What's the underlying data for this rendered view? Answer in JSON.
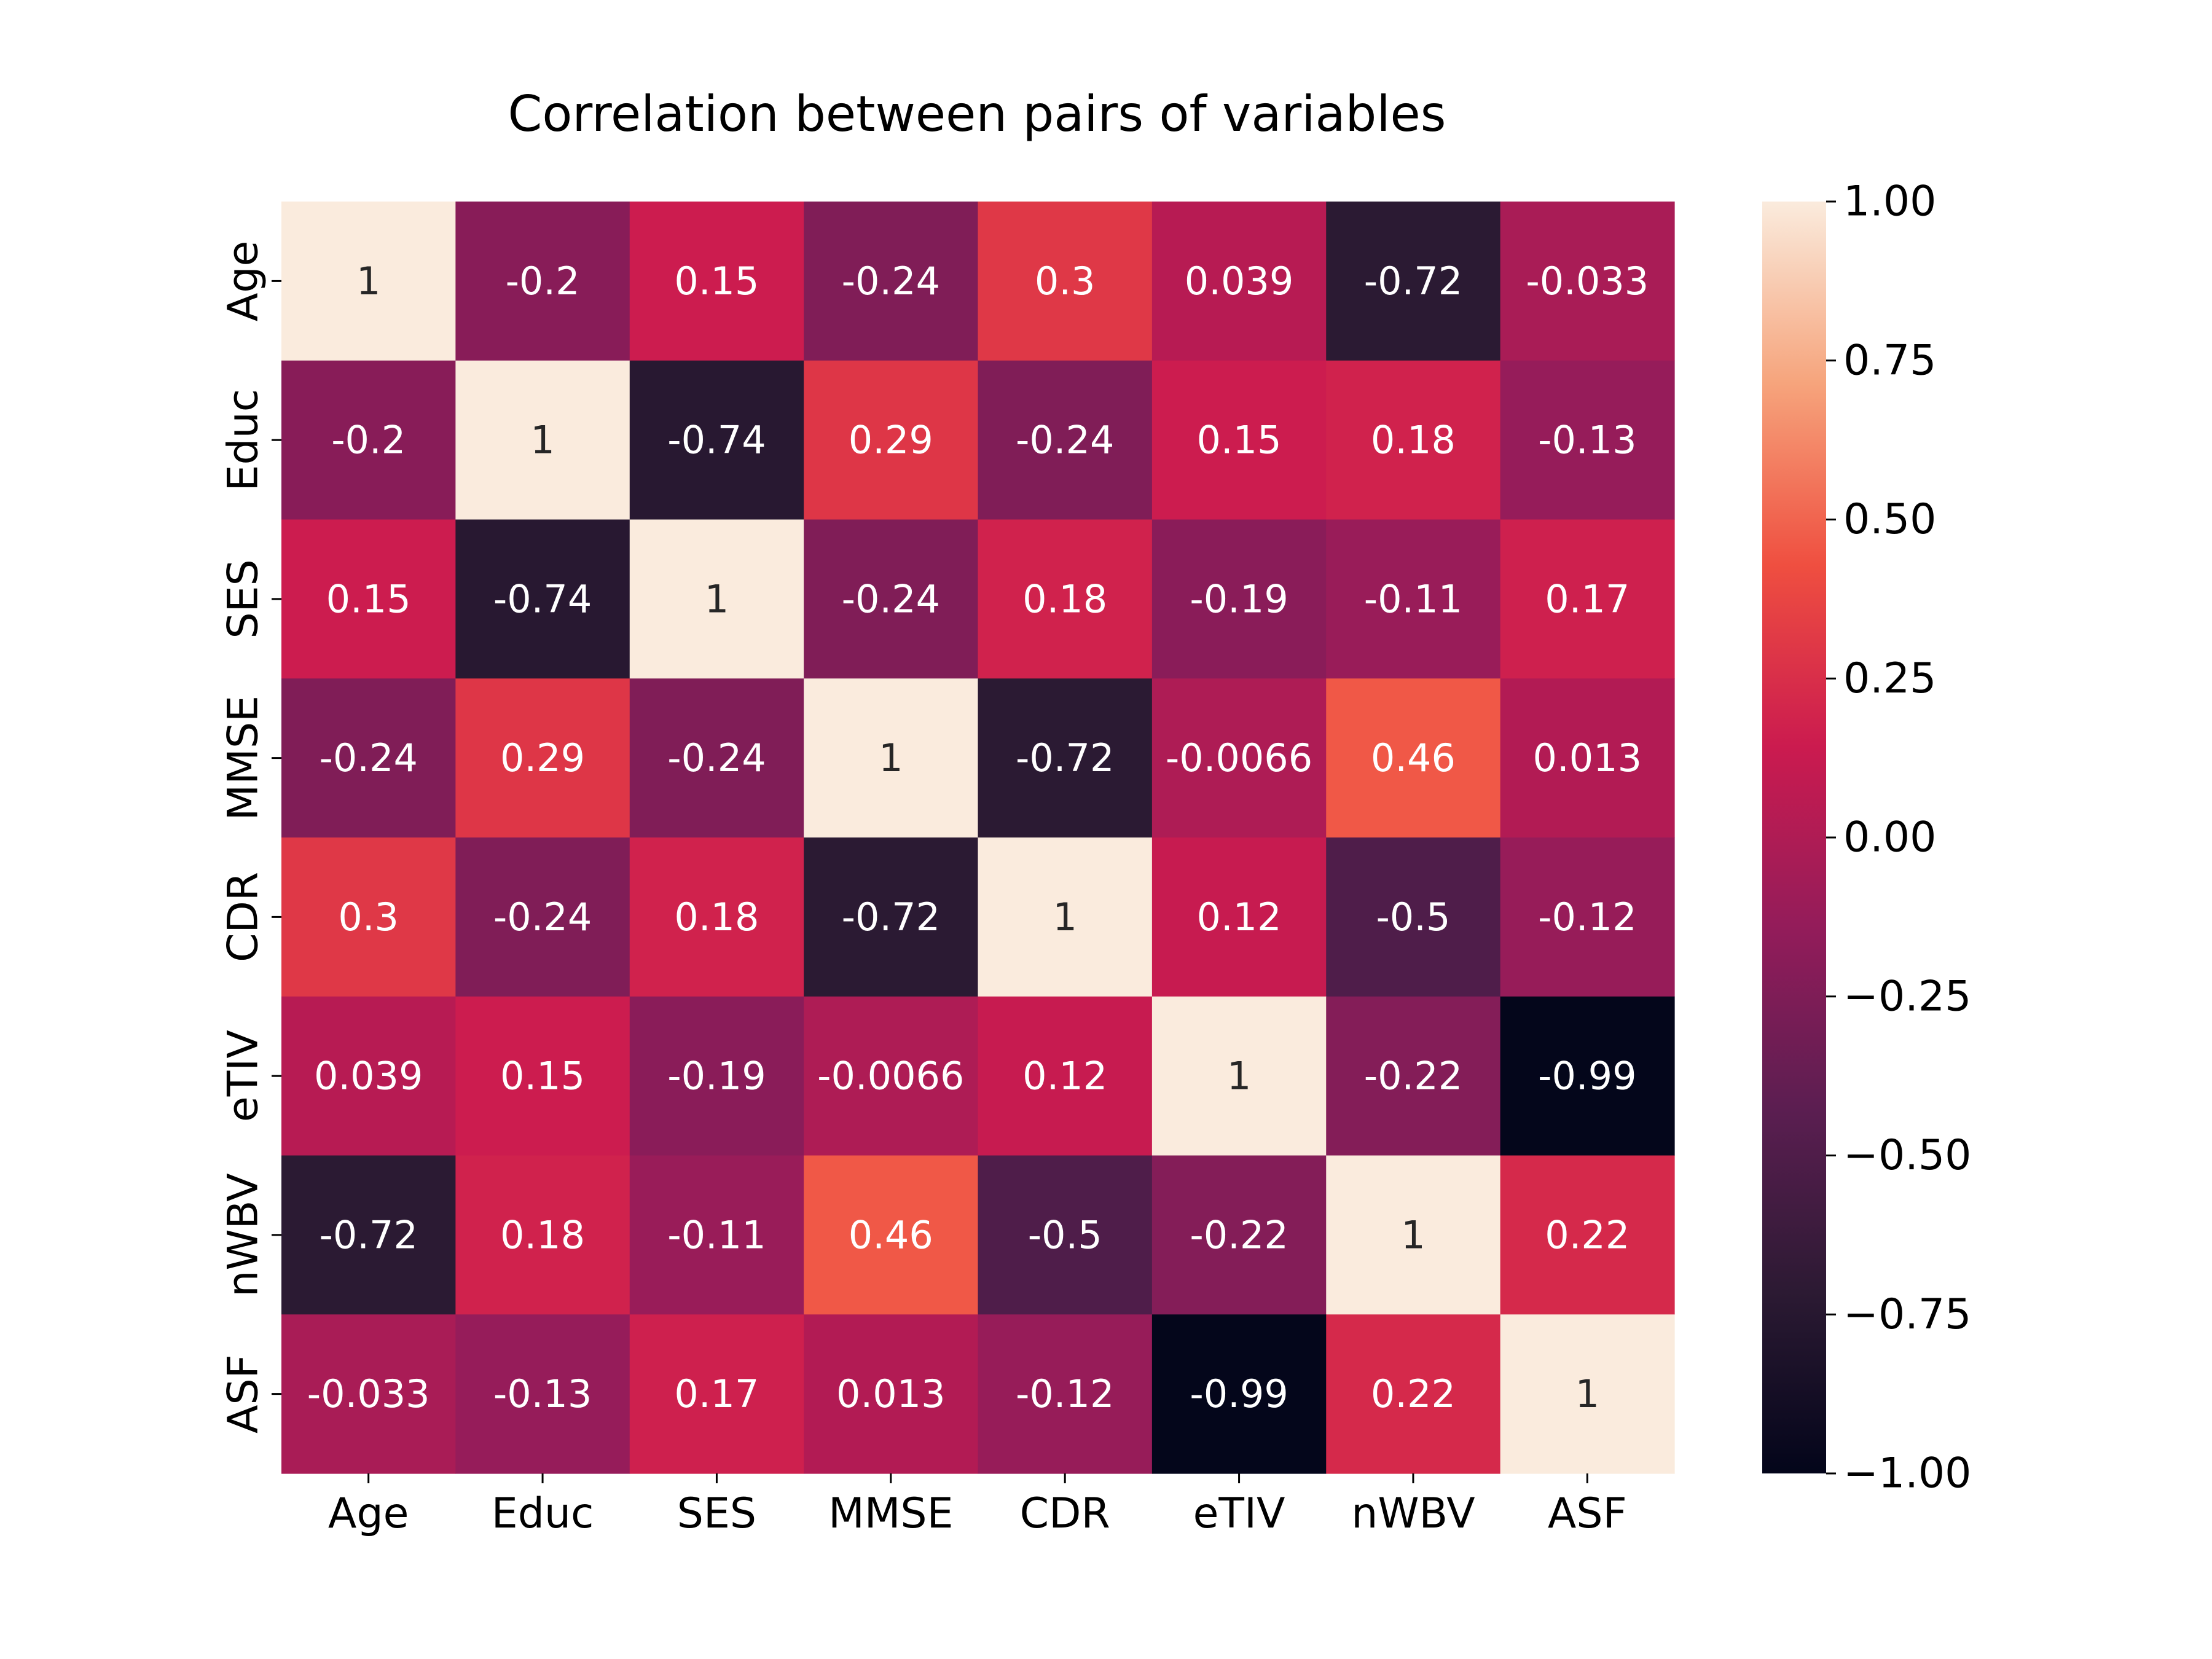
{
  "chart_data": {
    "type": "heatmap",
    "title": "Correlation between pairs of variables",
    "xlabel": "",
    "ylabel": "",
    "x_categories": [
      "Age",
      "Educ",
      "SES",
      "MMSE",
      "CDR",
      "eTIV",
      "nWBV",
      "ASF"
    ],
    "y_categories": [
      "Age",
      "Educ",
      "SES",
      "MMSE",
      "CDR",
      "eTIV",
      "nWBV",
      "ASF"
    ],
    "values": [
      [
        1,
        -0.2,
        0.15,
        -0.24,
        0.3,
        0.039,
        -0.72,
        -0.033
      ],
      [
        -0.2,
        1,
        -0.74,
        0.29,
        -0.24,
        0.15,
        0.18,
        -0.13
      ],
      [
        0.15,
        -0.74,
        1,
        -0.24,
        0.18,
        -0.19,
        -0.11,
        0.17
      ],
      [
        -0.24,
        0.29,
        -0.24,
        1,
        -0.72,
        -0.0066,
        0.46,
        0.013
      ],
      [
        0.3,
        -0.24,
        0.18,
        -0.72,
        1,
        0.12,
        -0.5,
        -0.12
      ],
      [
        0.039,
        0.15,
        -0.19,
        -0.0066,
        0.12,
        1,
        -0.22,
        -0.99
      ],
      [
        -0.72,
        0.18,
        -0.11,
        0.46,
        -0.5,
        -0.22,
        1,
        0.22
      ],
      [
        -0.033,
        -0.13,
        0.17,
        0.013,
        -0.12,
        -0.99,
        0.22,
        1
      ]
    ],
    "value_labels": [
      [
        "1",
        "-0.2",
        "0.15",
        "-0.24",
        "0.3",
        "0.039",
        "-0.72",
        "-0.033"
      ],
      [
        "-0.2",
        "1",
        "-0.74",
        "0.29",
        "-0.24",
        "0.15",
        "0.18",
        "-0.13"
      ],
      [
        "0.15",
        "-0.74",
        "1",
        "-0.24",
        "0.18",
        "-0.19",
        "-0.11",
        "0.17"
      ],
      [
        "-0.24",
        "0.29",
        "-0.24",
        "1",
        "-0.72",
        "-0.0066",
        "0.46",
        "0.013"
      ],
      [
        "0.3",
        "-0.24",
        "0.18",
        "-0.72",
        "1",
        "0.12",
        "-0.5",
        "-0.12"
      ],
      [
        "0.039",
        "0.15",
        "-0.19",
        "-0.0066",
        "0.12",
        "1",
        "-0.22",
        "-0.99"
      ],
      [
        "-0.72",
        "0.18",
        "-0.11",
        "0.46",
        "-0.5",
        "-0.22",
        "1",
        "0.22"
      ],
      [
        "-0.033",
        "-0.13",
        "0.17",
        "0.013",
        "-0.12",
        "-0.99",
        "0.22",
        "1"
      ]
    ],
    "colorbar": {
      "vmin": -1.0,
      "vmax": 1.0,
      "tick_values": [
        1.0,
        0.75,
        0.5,
        0.25,
        0.0,
        -0.25,
        -0.5,
        -0.75,
        -1.0
      ],
      "tick_labels": [
        "1.00",
        "0.75",
        "0.50",
        "0.25",
        "0.00",
        "−0.25",
        "−0.50",
        "−0.75",
        "−1.00"
      ],
      "colormap": "rocket",
      "colormap_stops": [
        "#03051a",
        "#2c1a33",
        "#5b1e51",
        "#931c5a",
        "#cb1b4f",
        "#ef4f40",
        "#f6a47c",
        "#faebdd"
      ]
    },
    "text_color_dark": "#262626",
    "text_color_light": "#ffffff",
    "legend": "colorbar-right",
    "grid": false
  }
}
